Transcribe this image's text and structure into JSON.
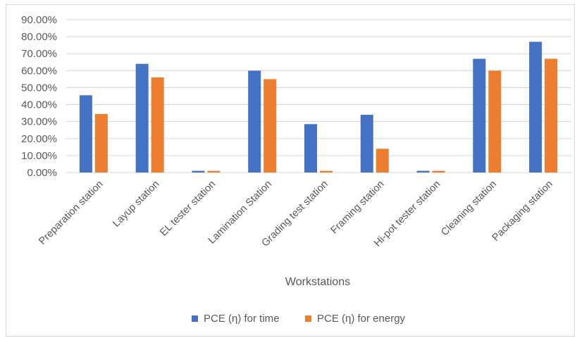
{
  "chart_data": {
    "type": "bar",
    "title": "",
    "xlabel": "Workstations",
    "ylabel": "",
    "ylim": [
      0,
      90
    ],
    "y_ticks": [
      "0.00%",
      "10.00%",
      "20.00%",
      "30.00%",
      "40.00%",
      "50.00%",
      "60.00%",
      "70.00%",
      "80.00%",
      "90.00%"
    ],
    "grid": true,
    "legend_position": "bottom",
    "categories": [
      "Preparation station",
      "Layup station",
      "EL tester station",
      "Lamination Station",
      "Grading test station",
      "Framing station",
      "Hi-pot tester station",
      "Cleaning station",
      "Packaging station"
    ],
    "series": [
      {
        "name": "PCE (η) for time",
        "color": "#4472c4",
        "values": [
          45.5,
          64,
          1,
          60,
          28.5,
          34,
          1,
          67,
          77
        ]
      },
      {
        "name": "PCE (η) for energy",
        "color": "#ed7d31",
        "values": [
          34.5,
          56,
          1,
          55,
          1,
          14,
          1,
          60,
          67
        ]
      }
    ]
  }
}
